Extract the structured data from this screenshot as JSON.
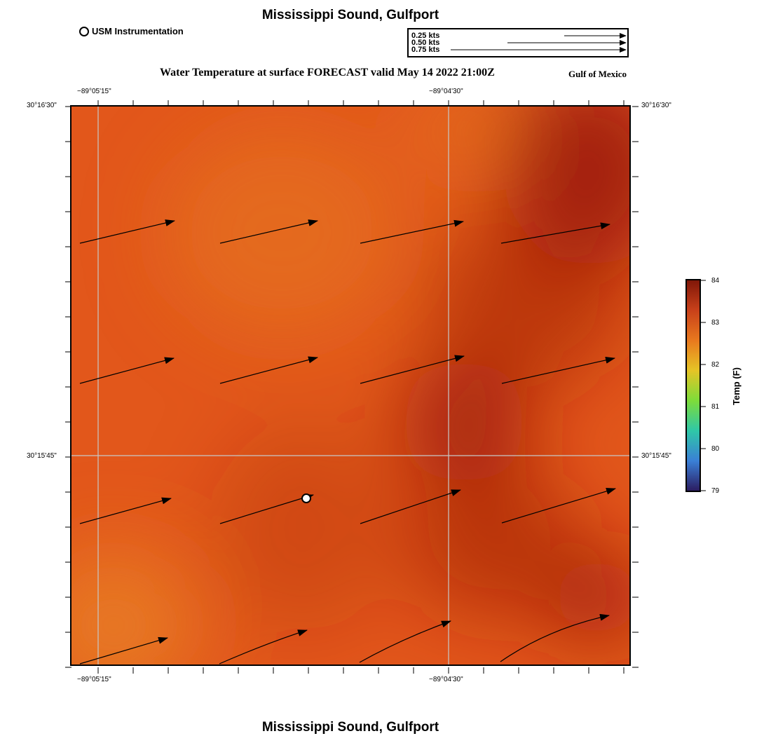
{
  "header": {
    "title": "Mississippi Sound, Gulfport",
    "subtitle": "Water Temperature at surface FORECAST valid May 14 2022 21:00Z",
    "region": "Gulf of Mexico",
    "usm_legend_label": "USM Instrumentation",
    "vector_legend": [
      "0.25 kts",
      "0.50 kts",
      "0.75 kts"
    ]
  },
  "footer": {
    "title": "Mississippi Sound, Gulfport"
  },
  "map": {
    "lon_labels": [
      "−89°05'15\"",
      "−89°04'30\""
    ],
    "lat_labels": [
      "30°16'30\"",
      "30°15'45\""
    ],
    "station": {
      "name": "USM Instrumentation"
    }
  },
  "colorbar": {
    "label": "Temp (F)",
    "ticks": [
      "84",
      "83",
      "82",
      "81",
      "80",
      "79"
    ],
    "min": 79,
    "max": 84,
    "colors": [
      "#2b1a5e",
      "#3a7fd6",
      "#2fc7a8",
      "#7ddc3a",
      "#e6c426",
      "#e8781e",
      "#c8401a",
      "#7e1608"
    ]
  },
  "field": {
    "base_color": "#e2571b",
    "warm_spots_color": "#a01e0a",
    "cool_spot_color": "#e87c22"
  }
}
